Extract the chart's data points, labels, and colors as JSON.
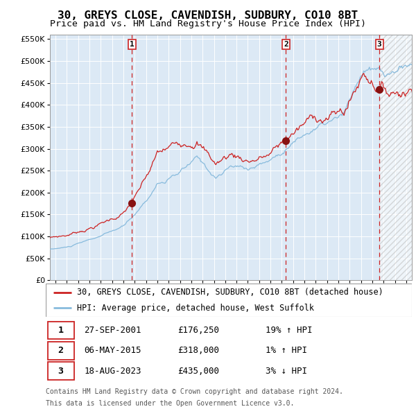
{
  "title": "30, GREYS CLOSE, CAVENDISH, SUDBURY, CO10 8BT",
  "subtitle": "Price paid vs. HM Land Registry's House Price Index (HPI)",
  "ylim": [
    0,
    560000
  ],
  "yticks": [
    0,
    50000,
    100000,
    150000,
    200000,
    250000,
    300000,
    350000,
    400000,
    450000,
    500000,
    550000
  ],
  "xlim_start": 1994.5,
  "xlim_end": 2026.5,
  "background_color": "#ffffff",
  "plot_bg_color": "#dce9f5",
  "grid_color": "#c8d8e8",
  "hpi_line_color": "#88bbdd",
  "price_line_color": "#cc2222",
  "sale_marker_color": "#881111",
  "vline_color": "#cc2222",
  "sales": [
    {
      "label": "1",
      "date_str": "27-SEP-2001",
      "year": 2001.74,
      "price": 176250,
      "pct": "19%",
      "direction": "↑"
    },
    {
      "label": "2",
      "date_str": "06-MAY-2015",
      "year": 2015.37,
      "price": 318000,
      "pct": "1%",
      "direction": "↑"
    },
    {
      "label": "3",
      "date_str": "18-AUG-2023",
      "year": 2023.63,
      "price": 435000,
      "pct": "3%",
      "direction": "↓"
    }
  ],
  "hpi_base": 78000,
  "prop_base": 92000,
  "legend_line1": "30, GREYS CLOSE, CAVENDISH, SUDBURY, CO10 8BT (detached house)",
  "legend_line2": "HPI: Average price, detached house, West Suffolk",
  "footer1": "Contains HM Land Registry data © Crown copyright and database right 2024.",
  "footer2": "This data is licensed under the Open Government Licence v3.0.",
  "title_fontsize": 11.5,
  "subtitle_fontsize": 9.5,
  "tick_fontsize": 8,
  "legend_fontsize": 8.5,
  "table_fontsize": 9
}
